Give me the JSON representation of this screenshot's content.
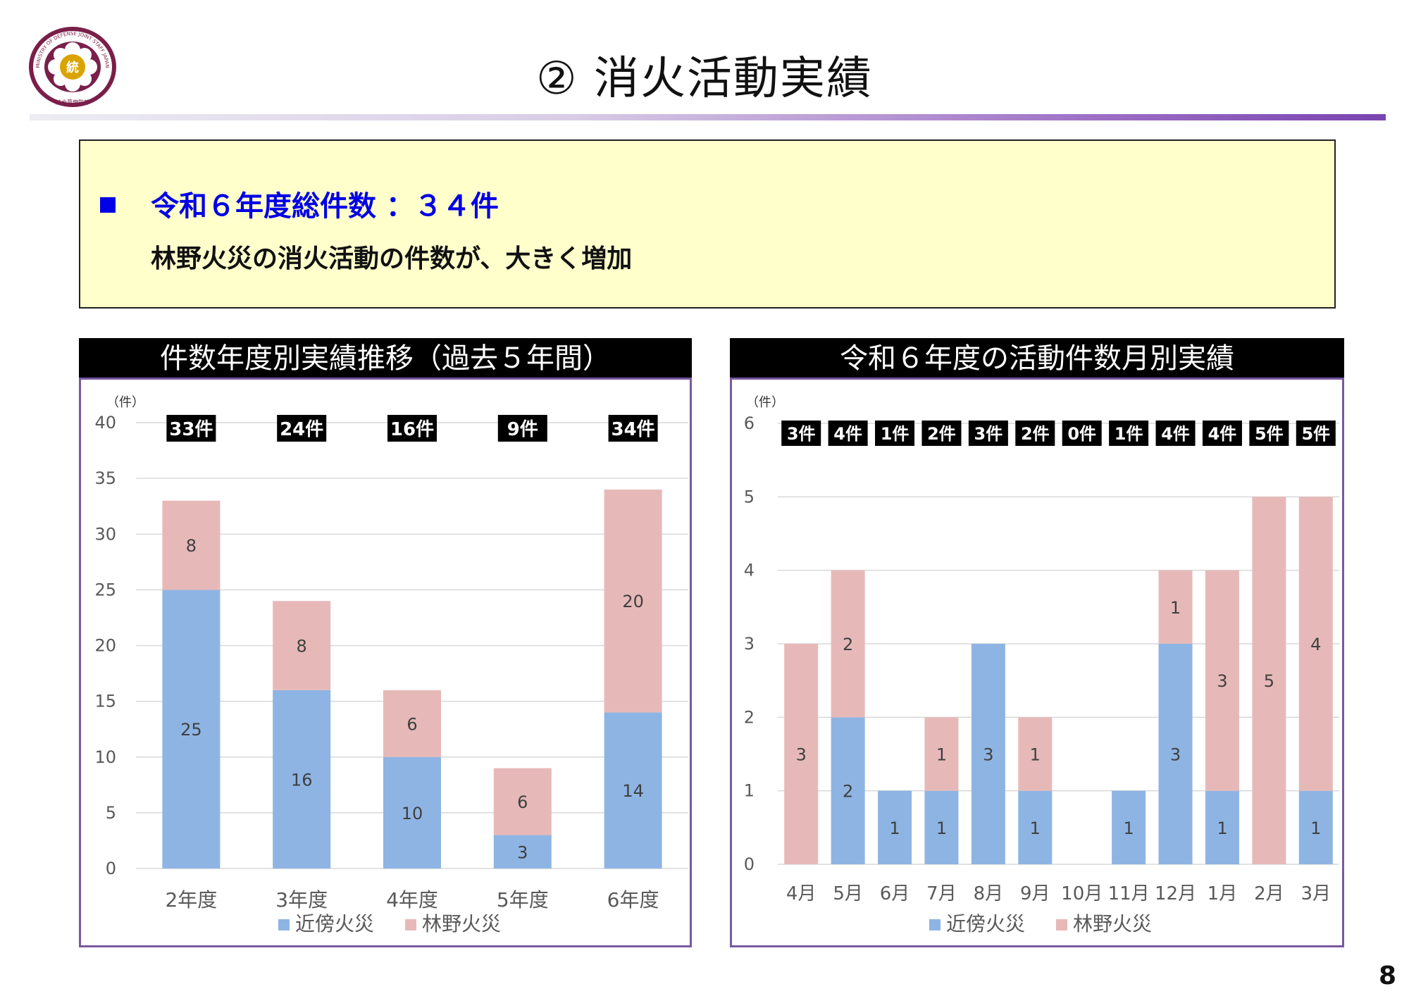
{
  "logo": {
    "icon": "ministry-of-defense-joint-staff-emblem",
    "ring_text": "MINISTRY OF DEFENSE   JOINT STAFF JAPAN",
    "bottom_text": "統合幕僚監部",
    "center_text": "統"
  },
  "page": {
    "title": "② 消火活動実績",
    "number": "8"
  },
  "summary": {
    "line1": "令和６年度総件数 ：３４件",
    "line2": "林野火災の消火活動の件数が、大きく増加",
    "bullet_color": "#0000e6"
  },
  "colors": {
    "near_fire": "#8eb4e3",
    "forest_fire": "#e6b9b8",
    "frame": "#7a58a0"
  },
  "chart_data": [
    {
      "type": "bar",
      "stacked": true,
      "title": "件数年度別実績推移（過去５年間）",
      "unit_label": "（件）",
      "categories": [
        "2年度",
        "3年度",
        "4年度",
        "5年度",
        "6年度"
      ],
      "series": [
        {
          "name": "近傍火災",
          "values": [
            25,
            16,
            10,
            3,
            14
          ]
        },
        {
          "name": "林野火災",
          "values": [
            8,
            8,
            6,
            6,
            20
          ]
        }
      ],
      "total_labels": [
        "33件",
        "24件",
        "16件",
        "9件",
        "34件"
      ],
      "ylim": [
        0,
        40
      ],
      "yticks": [
        0,
        5,
        10,
        15,
        20,
        25,
        30,
        35,
        40
      ],
      "grid": true,
      "legend_position": "bottom"
    },
    {
      "type": "bar",
      "stacked": true,
      "title": "令和６年度の活動件数月別実績",
      "unit_label": "（件）",
      "categories": [
        "4月",
        "5月",
        "6月",
        "7月",
        "8月",
        "9月",
        "10月",
        "11月",
        "12月",
        "1月",
        "2月",
        "3月"
      ],
      "series": [
        {
          "name": "近傍火災",
          "values": [
            0,
            2,
            1,
            1,
            3,
            1,
            0,
            1,
            3,
            1,
            0,
            1
          ]
        },
        {
          "name": "林野火災",
          "values": [
            3,
            2,
            0,
            1,
            0,
            1,
            0,
            0,
            1,
            3,
            5,
            4
          ]
        }
      ],
      "total_labels": [
        "3件",
        "4件",
        "1件",
        "2件",
        "3件",
        "2件",
        "0件",
        "1件",
        "4件",
        "4件",
        "5件",
        "5件"
      ],
      "ylim": [
        0,
        6
      ],
      "yticks": [
        0,
        1,
        2,
        3,
        4,
        5,
        6
      ],
      "grid": true,
      "legend_position": "bottom"
    }
  ]
}
